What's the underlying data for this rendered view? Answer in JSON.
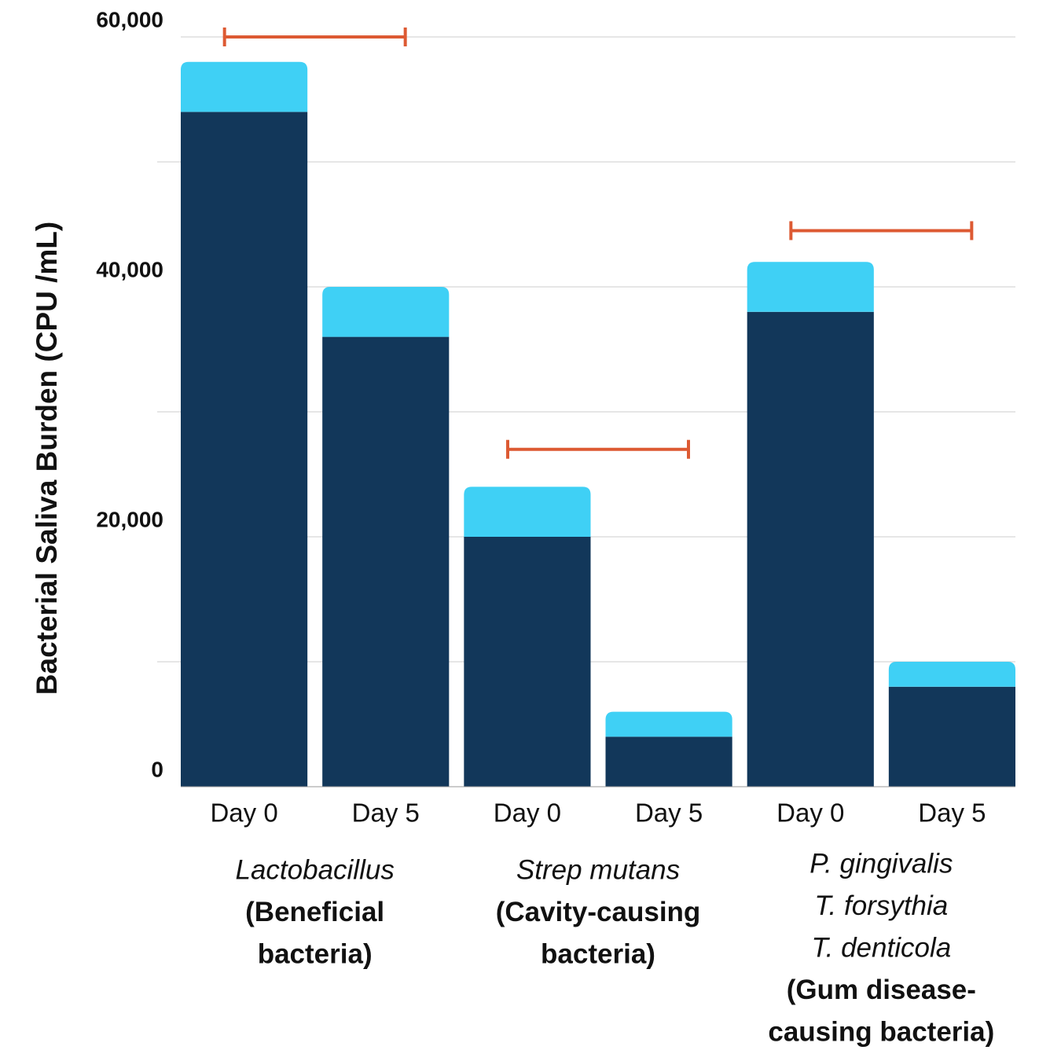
{
  "chart_data": {
    "type": "stacked_bar",
    "y_label": "Bacterial Saliva Burden (CPU /mL)",
    "categories": [
      "Day 0",
      "Day 5",
      "Day 0",
      "Day 5",
      "Day 0",
      "Day 5"
    ],
    "series": [
      {
        "color": "#12375a",
        "values": [
          54000,
          36000,
          20000,
          4000,
          38000,
          8000
        ]
      },
      {
        "color": "#3fd0f5",
        "values": [
          4000,
          4000,
          4000,
          2000,
          4000,
          2000
        ]
      }
    ],
    "groups": [
      {
        "italic": [
          "Lactobacillus"
        ],
        "bold": [
          "(Beneficial",
          "bacteria)"
        ]
      },
      {
        "italic": [
          "Strep mutans"
        ],
        "bold": [
          "(Cavity-causing",
          "bacteria)"
        ]
      },
      {
        "italic": [
          "P. gingivalis",
          "T. forsythia",
          "T. denticola"
        ],
        "bold": [
          "(Gum disease-",
          "causing bacteria)"
        ]
      }
    ],
    "brackets": [
      60000,
      27000,
      44500
    ],
    "bracket_color": "#dd5a33",
    "ylim": [
      0,
      60000
    ],
    "yticks": [
      0,
      {
        "value": 20000,
        "label": "20,000"
      },
      {
        "value": 40000,
        "label": "40,000"
      },
      {
        "value": 60000,
        "label": "60,000"
      }
    ],
    "minor_yticks": [
      10000,
      30000,
      50000
    ],
    "grid": true
  }
}
